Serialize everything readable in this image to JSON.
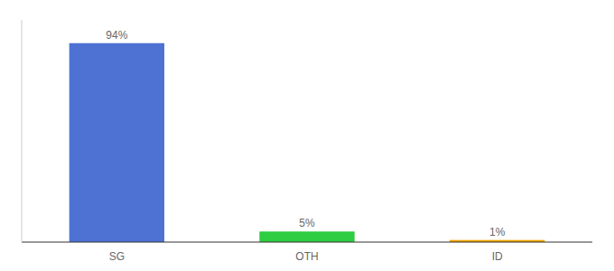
{
  "chart_data": {
    "type": "bar",
    "categories": [
      "SG",
      "OTH",
      "ID"
    ],
    "values": [
      94,
      5,
      1
    ],
    "value_labels": [
      "94%",
      "5%",
      "1%"
    ],
    "colors": [
      "#4d72d4",
      "#2ecc40",
      "#f0a500"
    ],
    "ylim": [
      0,
      105
    ],
    "data_labels": true,
    "tick_labels": "x",
    "grid": false
  }
}
